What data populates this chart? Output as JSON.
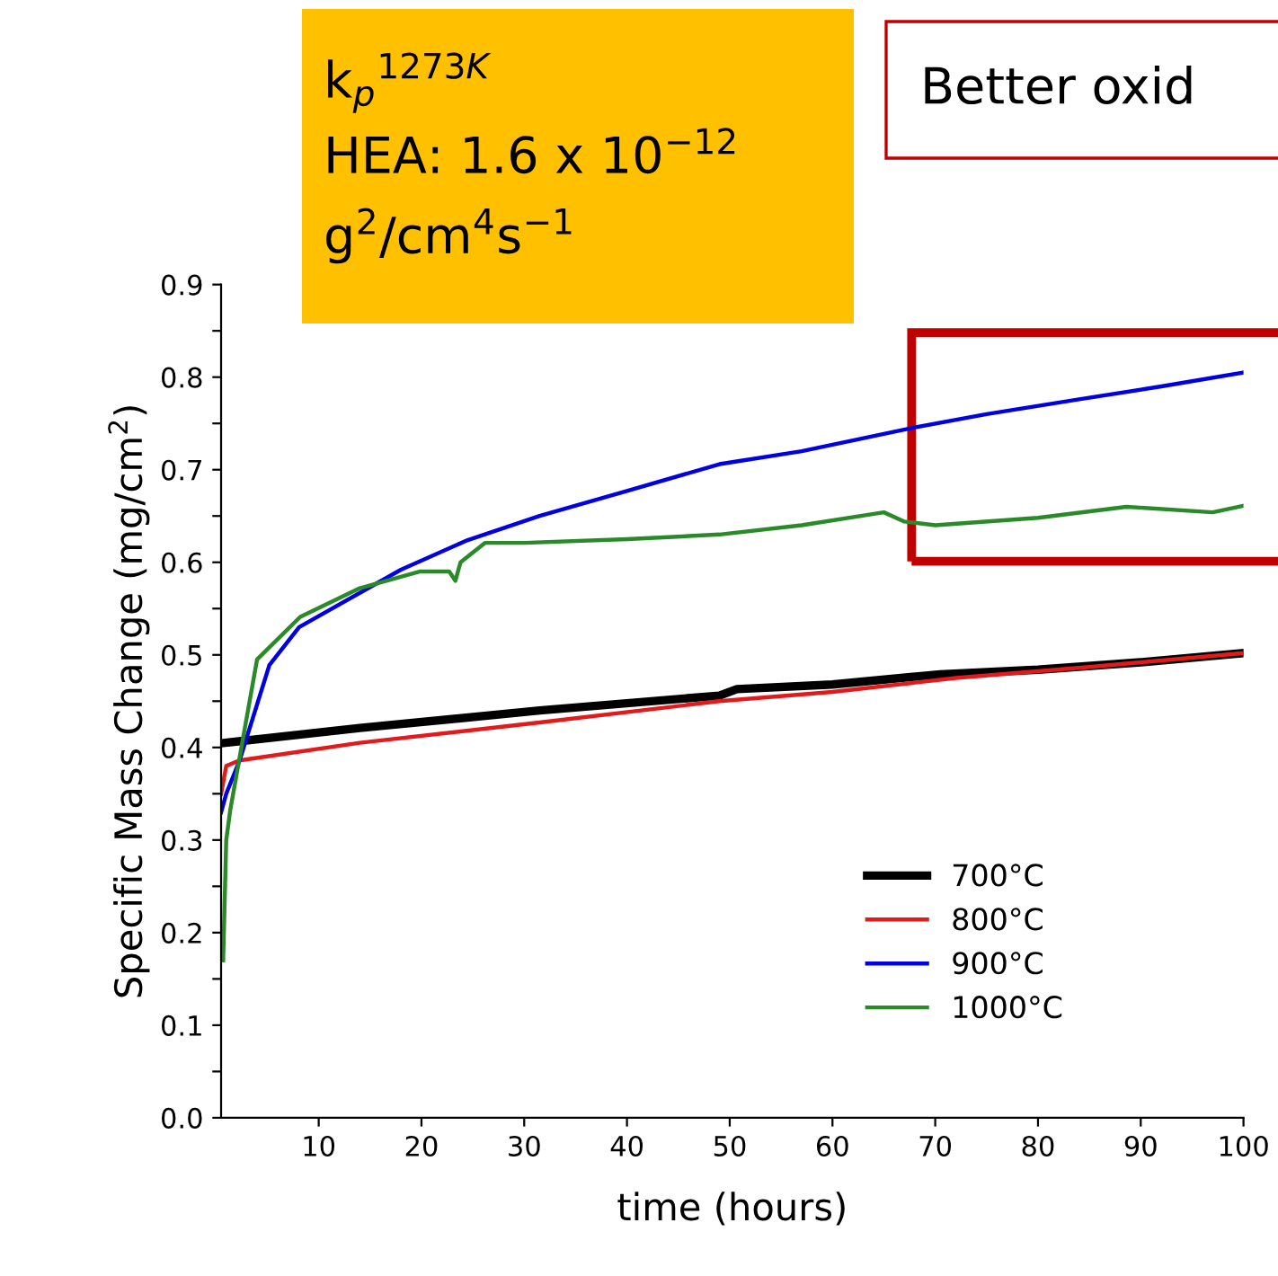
{
  "chart_data": {
    "type": "line",
    "xlabel": "time (hours)",
    "ylabel": "Specific Mass Change (mg/cm$^{2}$)",
    "xlim": [
      0.5,
      100
    ],
    "ylim": [
      0,
      0.9
    ],
    "xticks": [
      10,
      20,
      30,
      40,
      50,
      60,
      70,
      80,
      90,
      100
    ],
    "yticks": [
      {
        "value": 0,
        "label": "0.0"
      },
      {
        "value": 0.05,
        "label": null
      },
      0.1,
      {
        "value": 0.15,
        "label": null
      },
      0.2,
      {
        "value": 0.25,
        "label": null
      },
      0.3,
      {
        "value": 0.35,
        "label": null
      },
      0.4,
      {
        "value": 0.45,
        "label": null
      },
      0.5,
      {
        "value": 0.55,
        "label": null
      },
      0.6,
      {
        "value": 0.65,
        "label": null
      },
      0.7,
      {
        "value": 0.75,
        "label": null
      },
      0.8,
      {
        "value": 0.85,
        "label": null
      },
      0.9
    ],
    "grid": false,
    "legend": "bottom right",
    "marker": "none",
    "line_style": "solid",
    "annotations": [
      "k$_{p}$$^{1273K}$",
      "HEA: 1.6 x 10$^{−12}$",
      "g$^{2}$/cm$^{4}$s$^{−1}$",
      "Better oxid"
    ],
    "series": [
      {
        "name": "700°C",
        "color": "#000000",
        "x": [
          0.9,
          14,
          31.5,
          49,
          50.7,
          60,
          70.5,
          80,
          90,
          100
        ],
        "values": [
          0.405,
          0.421,
          0.44,
          0.456,
          0.463,
          0.468,
          0.479,
          0.484,
          0.492,
          0.502
        ]
      },
      {
        "name": "800°C",
        "color": "#e31a1c",
        "x": [
          0.5,
          1,
          2.3,
          14,
          31.5,
          49,
          60,
          72,
          85,
          100
        ],
        "values": [
          0.35,
          0.38,
          0.386,
          0.405,
          0.427,
          0.45,
          0.46,
          0.475,
          0.487,
          0.502
        ]
      },
      {
        "name": "900°C",
        "color": "#0000e0",
        "x": [
          0.5,
          1,
          2.3,
          5.2,
          8.1,
          18,
          24.5,
          31.5,
          40,
          49,
          57,
          67.7,
          75,
          84,
          92,
          100
        ],
        "values": [
          0.33,
          0.35,
          0.386,
          0.489,
          0.53,
          0.592,
          0.624,
          0.65,
          0.677,
          0.706,
          0.72,
          0.745,
          0.76,
          0.776,
          0.79,
          0.805
        ]
      },
      {
        "name": "1000°C",
        "color": "#2a8a2a",
        "x": [
          0.7,
          1,
          1.4,
          4,
          8.2,
          14,
          19.8,
          22.7,
          23.3,
          23.8,
          26.2,
          30,
          40,
          49,
          57,
          65,
          67,
          70,
          80,
          88.6,
          97,
          100
        ],
        "values": [
          0.17,
          0.3,
          0.333,
          0.495,
          0.541,
          0.572,
          0.59,
          0.59,
          0.58,
          0.6,
          0.621,
          0.621,
          0.625,
          0.63,
          0.64,
          0.654,
          0.644,
          0.64,
          0.648,
          0.66,
          0.654,
          0.661
        ]
      }
    ]
  }
}
